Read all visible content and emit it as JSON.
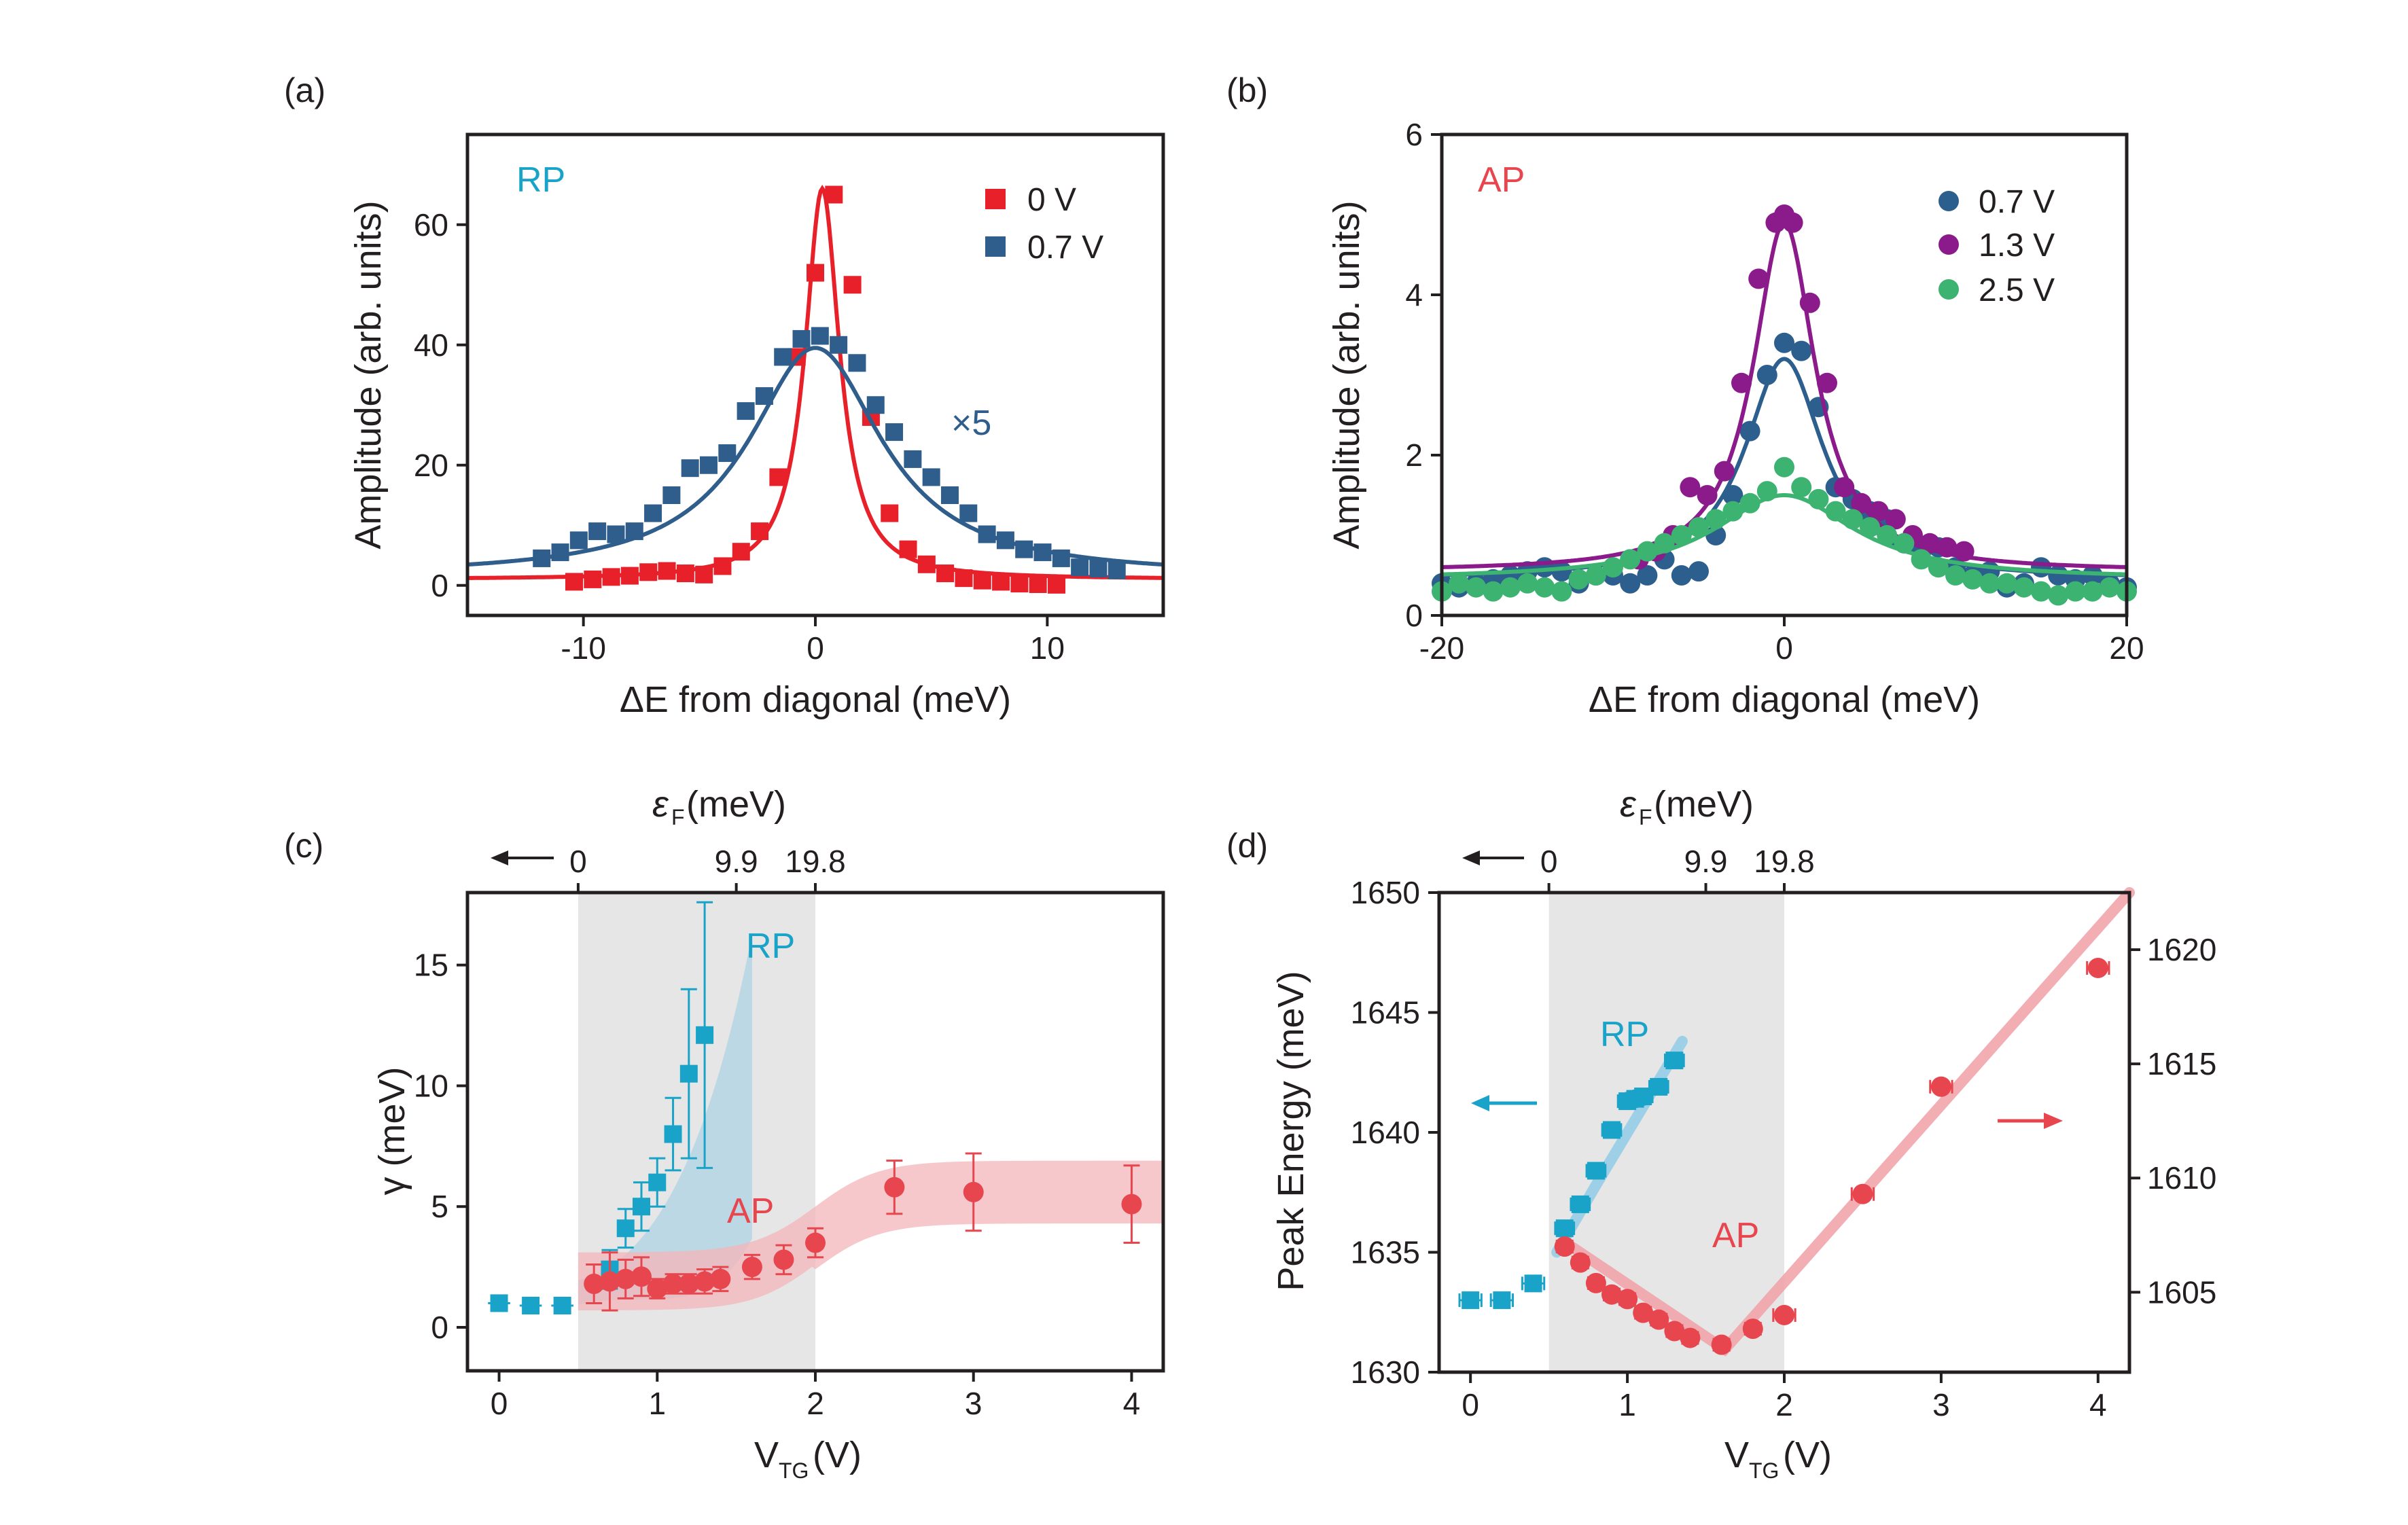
{
  "colors": {
    "red": "#e8202a",
    "steel_blue": "#2f5e8c",
    "dark_blue": "#2c5f8e",
    "purple": "#8b1a8b",
    "green": "#3cb371",
    "cyan": "#1aa3c8",
    "coral": "#e8464f",
    "shade_gray": "#e6e6e6",
    "rp_band": "#a9d1e3",
    "ap_band": "#f4b6ba",
    "ap_line": "#f0a0a6",
    "rp_line": "#8fcbe6"
  },
  "chart_data": [
    {
      "id": "a",
      "type": "scatter",
      "panel_label": "(a)",
      "xlabel": "ΔE from diagonal (meV)",
      "ylabel": "Amplitude (arb. units)",
      "xlim": [
        -15,
        15
      ],
      "ylim": [
        -5,
        75
      ],
      "xticks": [
        -10,
        0,
        10
      ],
      "xtick_labels": [
        "-10",
        "0",
        "10"
      ],
      "yticks": [
        0,
        20,
        40,
        60
      ],
      "ytick_labels": [
        "0",
        "20",
        "40",
        "60"
      ],
      "annotations": {
        "mode": "RP",
        "scale": "×5"
      },
      "legend": [
        "0 V",
        "0.7 V"
      ],
      "series": [
        {
          "name": "0 V",
          "color": "red",
          "marker": "square",
          "x": [
            -10.4,
            -9.6,
            -8.8,
            -8.0,
            -7.2,
            -6.4,
            -5.6,
            -4.8,
            -4.0,
            -3.2,
            -2.4,
            -1.6,
            -0.8,
            0,
            0.8,
            1.6,
            2.4,
            3.2,
            4.0,
            4.8,
            5.6,
            6.4,
            7.2,
            8.0,
            8.8,
            9.6,
            10.4
          ],
          "y": [
            0.6,
            1.0,
            1.4,
            1.6,
            2.2,
            2.4,
            2.0,
            1.8,
            3.2,
            5.6,
            9.0,
            18.0,
            38.0,
            52.0,
            65.0,
            50.0,
            28.0,
            12.0,
            6.0,
            3.5,
            2.0,
            1.2,
            0.8,
            0.6,
            0.3,
            0.2,
            0.1
          ],
          "x_shift": 0,
          "fit": {
            "type": "lorentzian",
            "x0": 0.3,
            "amp": 65,
            "gamma": 0.9,
            "offset": 1.0
          }
        },
        {
          "name": "0.7 V",
          "color": "steel_blue",
          "marker": "square",
          "x": [
            -11.8,
            -11.0,
            -10.2,
            -9.4,
            -8.6,
            -7.8,
            -7.0,
            -6.2,
            -5.4,
            -4.6,
            -3.8,
            -3.0,
            -2.2,
            -1.4,
            -0.6,
            0.2,
            1.0,
            1.8,
            2.6,
            3.4,
            4.2,
            5.0,
            5.8,
            6.6,
            7.4,
            8.2,
            9.0,
            9.8,
            10.6,
            11.4,
            12.2,
            13.0
          ],
          "y": [
            4.5,
            5.5,
            7.5,
            9.0,
            8.5,
            9.0,
            12.0,
            15.0,
            19.5,
            20.0,
            22.0,
            29.0,
            31.5,
            38.0,
            41.0,
            41.5,
            40.0,
            37.0,
            30.0,
            25.5,
            21.0,
            18.0,
            15.0,
            12.0,
            8.5,
            7.5,
            6.0,
            5.5,
            4.5,
            3.0,
            2.8,
            2.5
          ],
          "x_shift": 0,
          "fit": {
            "type": "lorentzian",
            "x0": 0.0,
            "amp": 38,
            "gamma": 3.5,
            "offset": 1.5
          }
        }
      ]
    },
    {
      "id": "b",
      "type": "scatter",
      "panel_label": "(b)",
      "xlabel": "ΔE from diagonal (meV)",
      "ylabel": "Amplitude (arb. units)",
      "xlim": [
        -20,
        20
      ],
      "ylim": [
        0,
        6
      ],
      "xticks": [
        -20,
        0,
        20
      ],
      "xtick_labels": [
        "-20",
        "0",
        "20"
      ],
      "yticks": [
        0,
        2,
        4,
        6
      ],
      "ytick_labels": [
        "0",
        "2",
        "4",
        "6"
      ],
      "annotations": {
        "mode": "AP"
      },
      "legend": [
        "0.7 V",
        "1.3 V",
        "2.5 V"
      ],
      "series": [
        {
          "name": "0.7 V",
          "color": "dark_blue",
          "marker": "circle",
          "x": [
            -20,
            -19,
            -18,
            -17,
            -16,
            -15,
            -14,
            -13,
            -12,
            -11,
            -10,
            -9,
            -8,
            -7,
            -6,
            -5,
            -4,
            -3,
            -2,
            -1,
            0,
            1,
            2,
            3,
            4,
            5,
            6,
            7,
            8,
            9,
            10,
            11,
            12,
            13,
            14,
            15,
            16,
            17,
            18,
            19,
            20
          ],
          "y": [
            0.4,
            0.35,
            0.4,
            0.45,
            0.5,
            0.55,
            0.6,
            0.55,
            0.4,
            0.5,
            0.5,
            0.4,
            0.5,
            0.7,
            0.5,
            0.55,
            1.0,
            1.5,
            2.3,
            3.0,
            3.4,
            3.3,
            2.6,
            1.6,
            1.45,
            1.3,
            1.2,
            0.9,
            0.8,
            0.85,
            0.6,
            0.5,
            0.55,
            0.35,
            0.4,
            0.6,
            0.5,
            0.45,
            0.5,
            0.4,
            0.35
          ],
          "x_shift": 0,
          "fit": {
            "type": "lorentzian",
            "x0": 0,
            "amp": 2.75,
            "gamma": 2.8,
            "offset": 0.45
          }
        },
        {
          "name": "1.3 V",
          "color": "purple",
          "marker": "circle",
          "x": [
            -8.5,
            -7.5,
            -6.5,
            -5.5,
            -4.5,
            -3.5,
            -2.5,
            -1.5,
            -0.5,
            0,
            0.5,
            1.5,
            2.5,
            3.5,
            4.5,
            5.5,
            6.5,
            7.5,
            8.5,
            9.5,
            10.5
          ],
          "y": [
            0.7,
            0.8,
            1.0,
            1.6,
            1.5,
            1.8,
            2.9,
            4.2,
            4.9,
            5.0,
            4.9,
            3.9,
            2.9,
            1.6,
            1.4,
            1.3,
            1.2,
            1.0,
            0.9,
            0.85,
            0.8
          ],
          "x_shift": 0,
          "fit": {
            "type": "lorentzian",
            "x0": 0,
            "amp": 4.35,
            "gamma": 2.2,
            "offset": 0.55
          }
        },
        {
          "name": "2.5 V",
          "color": "green",
          "marker": "circle",
          "x": [
            -20,
            -19,
            -18,
            -17,
            -16,
            -15,
            -14,
            -13,
            -12,
            -11,
            -10,
            -9,
            -8,
            -7,
            -6,
            -5,
            -4,
            -3,
            -2,
            -1,
            0,
            1,
            2,
            3,
            4,
            5,
            6,
            7,
            8,
            9,
            10,
            11,
            12,
            13,
            14,
            15,
            16,
            17,
            18,
            19,
            20
          ],
          "y": [
            0.3,
            0.4,
            0.35,
            0.3,
            0.35,
            0.4,
            0.35,
            0.3,
            0.45,
            0.5,
            0.6,
            0.7,
            0.8,
            0.9,
            1.0,
            1.1,
            1.2,
            1.3,
            1.4,
            1.55,
            1.85,
            1.6,
            1.45,
            1.3,
            1.2,
            1.1,
            1.0,
            0.9,
            0.7,
            0.6,
            0.5,
            0.45,
            0.4,
            0.4,
            0.35,
            0.3,
            0.25,
            0.3,
            0.3,
            0.35,
            0.3
          ],
          "x_shift": 0,
          "fit": {
            "type": "lorentzian",
            "x0": 0,
            "amp": 1.05,
            "gamma": 5.0,
            "offset": 0.45
          }
        }
      ]
    },
    {
      "id": "c",
      "type": "scatter",
      "panel_label": "(c)",
      "xlabel_main": "V",
      "xlabel_sub": "TG",
      "xlabel_unit": " (V)",
      "ylabel": "γ (meV)",
      "top_label_symbol": "ε",
      "top_label_sub": "F",
      "top_label_unit": " (meV)",
      "top_tick_labels": [
        "0",
        "9.9",
        "19.8"
      ],
      "top_tick_positions": [
        0.5,
        1.5,
        2.0
      ],
      "xlim": [
        -0.2,
        4.2
      ],
      "ylim": [
        -1.8,
        18
      ],
      "xticks": [
        0,
        1,
        2,
        3,
        4
      ],
      "xtick_labels": [
        "0",
        "1",
        "2",
        "3",
        "4"
      ],
      "yticks": [
        0,
        5,
        10,
        15
      ],
      "ytick_labels": [
        "0",
        "5",
        "10",
        "15"
      ],
      "shaded_region": [
        0.5,
        2.0
      ],
      "annotations": {
        "rp": "RP",
        "ap": "AP"
      },
      "series": [
        {
          "name": "RP",
          "color": "cyan",
          "marker": "square",
          "x": [
            0.0,
            0.2,
            0.4,
            0.7,
            0.8,
            0.9,
            1.0,
            1.1,
            1.2,
            1.3
          ],
          "y": [
            1.0,
            0.9,
            0.9,
            2.4,
            4.1,
            5.0,
            6.0,
            8.0,
            10.5,
            12.1
          ],
          "yerr": [
            0.3,
            0.3,
            0.3,
            0.8,
            0.8,
            1.0,
            1.0,
            1.5,
            3.5,
            5.5
          ],
          "xerr": [
            0.07,
            0.07,
            0.07,
            0.05,
            0.05,
            0.05,
            0.05,
            0.05,
            0.05,
            0.05
          ]
        },
        {
          "name": "AP",
          "color": "coral",
          "marker": "circle",
          "x": [
            0.6,
            0.7,
            0.8,
            0.9,
            1.0,
            1.1,
            1.2,
            1.3,
            1.4,
            1.6,
            1.8,
            2.0,
            2.5,
            3.0,
            4.0
          ],
          "y": [
            1.8,
            1.9,
            2.0,
            2.1,
            1.6,
            1.8,
            1.8,
            1.9,
            2.0,
            2.5,
            2.8,
            3.5,
            5.8,
            5.6,
            5.1
          ],
          "yerr": [
            0.8,
            1.2,
            0.8,
            0.8,
            0.4,
            0.4,
            0.4,
            0.5,
            0.5,
            0.5,
            0.6,
            0.6,
            1.1,
            1.6,
            1.6
          ],
          "xerr": [
            0.05,
            0.05,
            0.05,
            0.05,
            0.05,
            0.05,
            0.05,
            0.05,
            0.05,
            0.05,
            0.05,
            0.05,
            0.05,
            0.05,
            0.05
          ]
        }
      ]
    },
    {
      "id": "d",
      "type": "scatter",
      "panel_label": "(d)",
      "xlabel_main": "V",
      "xlabel_sub": "TG",
      "xlabel_unit": " (V)",
      "ylabel": "Peak Energy (meV)",
      "top_label_symbol": "ε",
      "top_label_sub": "F",
      "top_label_unit": " (meV)",
      "top_tick_labels": [
        "0",
        "9.9",
        "19.8"
      ],
      "top_tick_positions": [
        0.5,
        1.5,
        2.0
      ],
      "xlim": [
        -0.2,
        4.2
      ],
      "ylim": [
        1630,
        1650
      ],
      "ylim_right": [
        1601.5,
        1622.5
      ],
      "xticks": [
        0,
        1,
        2,
        3,
        4
      ],
      "xtick_labels": [
        "0",
        "1",
        "2",
        "3",
        "4"
      ],
      "yticks": [
        1630,
        1635,
        1640,
        1645,
        1650
      ],
      "ytick_labels": [
        "1630",
        "1635",
        "1640",
        "1645",
        "1650"
      ],
      "yticks_right": [
        1605,
        1610,
        1615,
        1620
      ],
      "ytick_labels_right": [
        "1605",
        "1610",
        "1615",
        "1620"
      ],
      "shaded_region": [
        0.5,
        2.0
      ],
      "annotations": {
        "rp": "RP",
        "ap": "AP"
      },
      "series": [
        {
          "name": "RP",
          "color": "cyan",
          "marker": "square",
          "axis": "left",
          "x": [
            0.0,
            0.2,
            0.4,
            0.6,
            0.7,
            0.8,
            0.9,
            1.0,
            1.05,
            1.1,
            1.2,
            1.3
          ],
          "y": [
            1633.0,
            1633.0,
            1633.7,
            1636.0,
            1637.0,
            1638.4,
            1640.1,
            1641.3,
            1641.4,
            1641.5,
            1641.9,
            1643.0
          ],
          "xerr": [
            0.07,
            0.07,
            0.07,
            0.06,
            0.06,
            0.06,
            0.06,
            0.06,
            0.06,
            0.06,
            0.06,
            0.06
          ]
        },
        {
          "name": "AP",
          "color": "coral",
          "marker": "circle",
          "axis": "right",
          "x": [
            0.6,
            0.7,
            0.8,
            0.9,
            1.0,
            1.1,
            1.2,
            1.3,
            1.4,
            1.6,
            1.8,
            2.0,
            2.5,
            3.0,
            4.0
          ],
          "y": [
            1607.0,
            1606.3,
            1605.4,
            1604.9,
            1604.7,
            1604.1,
            1603.8,
            1603.3,
            1603.0,
            1602.7,
            1603.4,
            1604.0,
            1609.3,
            1614.0,
            1619.2
          ],
          "xerr": [
            0.05,
            0.05,
            0.05,
            0.05,
            0.05,
            0.05,
            0.05,
            0.05,
            0.05,
            0.05,
            0.05,
            0.07,
            0.07,
            0.07,
            0.07
          ]
        }
      ]
    }
  ]
}
